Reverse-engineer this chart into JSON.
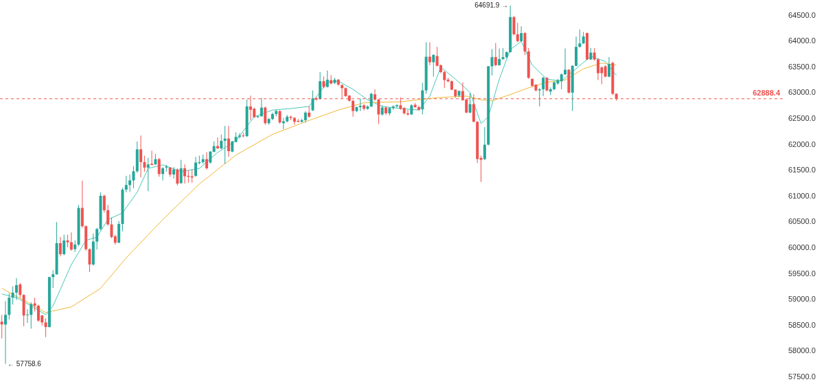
{
  "chart_data": {
    "type": "candlestick",
    "categories": [
      null,
      null,
      null,
      null,
      null,
      null,
      null,
      null,
      null,
      null,
      null,
      null,
      null,
      null,
      null,
      null,
      null,
      null,
      null,
      null,
      null,
      null,
      null,
      null,
      null,
      null,
      null,
      null,
      null,
      null,
      null,
      null,
      null,
      null,
      null,
      null,
      null,
      null,
      null,
      null,
      null,
      null,
      null,
      null,
      null,
      null,
      null,
      null,
      null,
      null,
      null,
      null,
      null,
      null,
      null,
      null,
      null,
      null,
      null,
      null,
      null,
      null,
      null,
      null,
      null,
      null,
      null,
      null,
      null,
      null,
      null,
      null,
      null,
      null,
      null,
      null,
      null,
      null,
      null,
      null,
      null,
      null,
      null,
      null,
      null,
      null,
      null,
      null,
      null,
      null,
      null,
      null,
      null,
      null,
      null,
      null,
      null,
      null,
      null,
      null,
      null,
      null,
      null,
      null,
      null,
      null,
      null,
      null,
      null,
      null,
      null,
      null,
      null,
      null,
      null,
      null,
      null,
      null,
      null,
      null,
      null,
      null,
      null,
      null,
      null,
      null,
      null,
      null,
      null,
      null,
      null,
      null,
      null,
      null,
      null,
      null,
      null,
      null,
      null,
      null,
      null,
      null,
      null,
      null,
      null,
      null,
      null,
      null,
      null,
      null,
      null,
      null,
      null,
      null,
      null,
      null,
      null,
      null,
      null,
      null,
      null,
      null,
      null,
      null,
      null,
      null,
      null,
      null,
      null,
      null,
      null,
      null,
      null,
      null,
      null,
      null,
      null,
      null,
      null,
      null,
      null,
      null,
      null,
      null,
      null,
      null,
      null,
      null,
      null,
      null,
      null,
      null,
      null,
      null,
      null,
      null,
      null,
      null,
      null,
      null,
      null,
      null,
      null,
      null,
      null,
      null,
      null,
      null,
      null,
      null,
      null,
      null,
      null,
      null
    ],
    "ohlc": [
      [
        58573,
        58706,
        58250,
        58520
      ],
      [
        58520,
        58972,
        57758.6,
        58706
      ],
      [
        58706,
        59127,
        58617,
        59039
      ],
      [
        59039,
        59260,
        58905,
        59136
      ],
      [
        59136,
        59416,
        58994,
        59282
      ],
      [
        59295,
        59327,
        59039,
        59092
      ],
      [
        59092,
        59105,
        58485,
        58693
      ],
      [
        58702,
        58817,
        58551,
        58715
      ],
      [
        58706,
        58950,
        58440,
        58914
      ],
      [
        58928,
        59039,
        58773,
        58884
      ],
      [
        58884,
        58905,
        58573,
        58595
      ],
      [
        58693,
        58706,
        58498,
        58560
      ],
      [
        58560,
        58640,
        58276,
        58471
      ],
      [
        58471,
        59446,
        58462,
        59437
      ],
      [
        59437,
        59571,
        59225,
        59491
      ],
      [
        59491,
        60502,
        59482,
        60094
      ],
      [
        60094,
        60213,
        59836,
        59881
      ],
      [
        59881,
        60258,
        59859,
        60146
      ],
      [
        60146,
        60258,
        60014,
        60111
      ],
      [
        60111,
        60302,
        59947,
        59970
      ],
      [
        59978,
        60146,
        59925,
        60067
      ],
      [
        60067,
        60833,
        60036,
        60776
      ],
      [
        60776,
        61303,
        60390,
        60422
      ],
      [
        60422,
        60439,
        59947,
        59978
      ],
      [
        59978,
        59991,
        59535,
        59681
      ],
      [
        59681,
        60280,
        59659,
        60125
      ],
      [
        60125,
        60390,
        59970,
        60368
      ],
      [
        60368,
        61077,
        60346,
        61011
      ],
      [
        61011,
        61033,
        60687,
        60732
      ],
      [
        60732,
        60833,
        60434,
        60457
      ],
      [
        60457,
        60589,
        60190,
        60213
      ],
      [
        60226,
        60258,
        60067,
        60103
      ],
      [
        60103,
        60523,
        60094,
        60466
      ],
      [
        60466,
        61166,
        60324,
        61130
      ],
      [
        61130,
        61397,
        61077,
        61219
      ],
      [
        61219,
        61423,
        61086,
        61308
      ],
      [
        61308,
        61588,
        61157,
        61485
      ],
      [
        61485,
        62061,
        61454,
        61910
      ],
      [
        61910,
        62177,
        61365,
        61663
      ],
      [
        61663,
        61787,
        61476,
        61556
      ],
      [
        61556,
        61743,
        61100,
        61618
      ],
      [
        61632,
        61884,
        61600,
        61609
      ],
      [
        61618,
        61823,
        61609,
        61720
      ],
      [
        61720,
        61743,
        61379,
        61432
      ],
      [
        61432,
        61565,
        61308,
        61543
      ],
      [
        61556,
        61609,
        61476,
        61574
      ],
      [
        61556,
        61565,
        61379,
        61422
      ],
      [
        61423,
        61565,
        61344,
        61520
      ],
      [
        61520,
        61543,
        61210,
        61246
      ],
      [
        61255,
        61707,
        61246,
        61543
      ],
      [
        61543,
        61618,
        61246,
        61388
      ],
      [
        61397,
        61499,
        61264,
        61379
      ],
      [
        61388,
        61520,
        61264,
        61365
      ],
      [
        61397,
        61765,
        61379,
        61654
      ],
      [
        61645,
        61787,
        61618,
        61663
      ],
      [
        61663,
        61809,
        61632,
        61720
      ],
      [
        61720,
        61853,
        61520,
        61543
      ],
      [
        61654,
        61875,
        61632,
        61866
      ],
      [
        61862,
        62062,
        61854,
        61973
      ],
      [
        61973,
        62142,
        61920,
        61928
      ],
      [
        61928,
        62195,
        61911,
        62075
      ],
      [
        62075,
        62363,
        61632,
        62119
      ],
      [
        62119,
        62363,
        61765,
        61875
      ],
      [
        61866,
        62075,
        61854,
        62062
      ],
      [
        62053,
        62240,
        62044,
        62151
      ],
      [
        62151,
        62222,
        62119,
        62177
      ],
      [
        62177,
        62231,
        62142,
        62164
      ],
      [
        62164,
        62873,
        62151,
        62740
      ],
      [
        62740,
        62948,
        62474,
        62674
      ],
      [
        62696,
        62718,
        62519,
        62532
      ],
      [
        62532,
        62562,
        62519,
        62550
      ],
      [
        62550,
        62904,
        62541,
        62718
      ],
      [
        62718,
        62740,
        62386,
        62416
      ],
      [
        62416,
        62519,
        62386,
        62496
      ],
      [
        62496,
        62621,
        62475,
        62594
      ],
      [
        62594,
        62674,
        62550,
        62651
      ],
      [
        62651,
        62665,
        62407,
        62430
      ],
      [
        62416,
        62519,
        62297,
        62452
      ],
      [
        62452,
        62576,
        62430,
        62541
      ],
      [
        62541,
        62562,
        62474,
        62519
      ],
      [
        62519,
        62532,
        62386,
        62443
      ],
      [
        62461,
        62496,
        62430,
        62443
      ],
      [
        62443,
        62505,
        62430,
        62474
      ],
      [
        62474,
        62651,
        62430,
        62621
      ],
      [
        62621,
        62740,
        62519,
        62541
      ],
      [
        62664,
        63050,
        62651,
        62895
      ],
      [
        62895,
        62918,
        62851,
        62873
      ],
      [
        62886,
        63405,
        62873,
        63228
      ],
      [
        63228,
        63317,
        63094,
        63117
      ],
      [
        63117,
        63436,
        63108,
        63258
      ],
      [
        63249,
        63347,
        63170,
        63183
      ],
      [
        63196,
        63294,
        63170,
        63258
      ],
      [
        63258,
        63272,
        63139,
        63162
      ],
      [
        63153,
        63170,
        62895,
        63094
      ],
      [
        63094,
        63108,
        62930,
        62939
      ],
      [
        62948,
        62961,
        62829,
        62851
      ],
      [
        62851,
        62859,
        62541,
        62651
      ],
      [
        62651,
        62740,
        62629,
        62726
      ],
      [
        62726,
        62895,
        62651,
        62753
      ],
      [
        62762,
        62784,
        62664,
        62696
      ],
      [
        62696,
        62762,
        62674,
        62740
      ],
      [
        62740,
        63006,
        62726,
        62984
      ],
      [
        62975,
        63073,
        62851,
        62873
      ],
      [
        62873,
        62886,
        62398,
        62585
      ],
      [
        62585,
        62762,
        62562,
        62718
      ],
      [
        62718,
        62740,
        62576,
        62607
      ],
      [
        62607,
        62726,
        62562,
        62709
      ],
      [
        62709,
        62762,
        62674,
        62740
      ],
      [
        62740,
        62784,
        62718,
        62762
      ],
      [
        62762,
        62918,
        62674,
        62696
      ],
      [
        62709,
        62726,
        62585,
        62607
      ],
      [
        62607,
        62674,
        62562,
        62585
      ],
      [
        62585,
        62784,
        62576,
        62762
      ],
      [
        62772,
        62807,
        62710,
        62727
      ],
      [
        62727,
        62754,
        62665,
        62674
      ],
      [
        62683,
        63197,
        62586,
        63051
      ],
      [
        63051,
        63982,
        62985,
        63703
      ],
      [
        63703,
        63982,
        63539,
        63596
      ],
      [
        63596,
        63747,
        63317,
        63738
      ],
      [
        63716,
        63893,
        63516,
        63525
      ],
      [
        63539,
        63552,
        63383,
        63406
      ],
      [
        63406,
        63428,
        63095,
        63250
      ],
      [
        63259,
        63295,
        63206,
        63228
      ],
      [
        63228,
        63242,
        63051,
        63064
      ],
      [
        63064,
        63073,
        62905,
        62940
      ],
      [
        62949,
        63051,
        62918,
        63038
      ],
      [
        63038,
        63206,
        62851,
        62860
      ],
      [
        62874,
        62896,
        62608,
        62621
      ],
      [
        62621,
        62993,
        62608,
        62785
      ],
      [
        62785,
        62976,
        62430,
        62444
      ],
      [
        62444,
        62452,
        61646,
        61721
      ],
      [
        61743,
        61788,
        61278,
        61708
      ],
      [
        61721,
        62342,
        61699,
        62000
      ],
      [
        62000,
        63525,
        61987,
        63517
      ],
      [
        63517,
        63849,
        63339,
        63694
      ],
      [
        63694,
        63969,
        63516,
        63539
      ],
      [
        63539,
        63862,
        63525,
        63658
      ],
      [
        63658,
        63871,
        63641,
        63694
      ],
      [
        63694,
        63805,
        63672,
        63791
      ],
      [
        63791,
        64691.9,
        63782,
        64470
      ],
      [
        64470,
        64492,
        64115,
        64137
      ],
      [
        64137,
        64359,
        63982,
        64004
      ],
      [
        64004,
        64292,
        63995,
        64159
      ],
      [
        64159,
        64181,
        63738,
        63805
      ],
      [
        63805,
        63871,
        63273,
        63295
      ],
      [
        63273,
        63286,
        63117,
        63140
      ],
      [
        63162,
        63171,
        63029,
        63051
      ],
      [
        63051,
        63095,
        62741,
        63073
      ],
      [
        63073,
        63317,
        62940,
        63295
      ],
      [
        63295,
        63304,
        63029,
        63051
      ],
      [
        63029,
        63109,
        62962,
        63073
      ],
      [
        63073,
        63228,
        63051,
        63206
      ],
      [
        63184,
        63273,
        63162,
        63250
      ],
      [
        63228,
        63383,
        63073,
        63361
      ],
      [
        63361,
        63862,
        63348,
        63450
      ],
      [
        63450,
        63463,
        62993,
        63007
      ],
      [
        63007,
        63539,
        62652,
        63525
      ],
      [
        63525,
        64093,
        63516,
        63893
      ],
      [
        63893,
        64226,
        63880,
        63960
      ],
      [
        63960,
        64181,
        63951,
        64093
      ],
      [
        64159,
        64172,
        63641,
        63649
      ],
      [
        63649,
        63871,
        63641,
        63782
      ],
      [
        63782,
        63871,
        63627,
        63649
      ],
      [
        63649,
        63672,
        63250,
        63383
      ],
      [
        63494,
        63516,
        63171,
        63383
      ],
      [
        63516,
        63539,
        63304,
        63317
      ],
      [
        63317,
        63694,
        63304,
        63561
      ],
      [
        63583,
        63605,
        62962,
        62985
      ],
      [
        62985,
        62993,
        62852,
        62888.4
      ],
      null,
      null,
      null,
      null,
      null,
      null,
      null,
      null,
      null,
      null,
      null,
      null,
      null,
      null,
      null,
      null,
      null,
      null,
      null,
      null,
      null,
      null,
      null,
      null,
      null,
      null,
      null,
      null,
      null,
      null,
      null,
      null,
      null,
      null,
      null,
      null,
      null,
      null,
      null,
      null,
      null,
      null,
      null,
      null,
      null
    ],
    "colors": [
      "#ef5350",
      "#26a69a",
      "#26a69a",
      "#26a69a",
      "#26a69a",
      "#ef5350",
      "#ef5350",
      "#26a69a",
      "#26a69a",
      "#ef5350",
      "#ef5350",
      "#ef5350",
      "#ef5350",
      "#26a69a",
      "#26a69a",
      "#26a69a",
      "#ef5350",
      "#26a69a",
      "#ef5350",
      "#ef5350",
      "#26a69a",
      "#26a69a",
      "#ef5350",
      "#ef5350",
      "#ef5350",
      "#26a69a",
      "#26a69a",
      "#26a69a",
      "#ef5350",
      "#ef5350",
      "#ef5350",
      "#ef5350",
      "#26a69a",
      "#26a69a",
      "#26a69a",
      "#26a69a",
      "#26a69a",
      "#26a69a",
      "#ef5350",
      "#ef5350",
      "#26a69a",
      "#ef5350",
      "#26a69a",
      "#ef5350",
      "#26a69a",
      "#26a69a",
      "#ef5350",
      "#26a69a",
      "#ef5350",
      "#26a69a",
      "#ef5350",
      "#ef5350",
      "#ef5350",
      "#26a69a",
      "#26a69a",
      "#26a69a",
      "#ef5350",
      "#26a69a",
      "#26a69a",
      "#ef5350",
      "#26a69a",
      "#26a69a",
      "#ef5350",
      "#26a69a",
      "#26a69a",
      "#26a69a",
      "#ef5350",
      "#26a69a",
      "#ef5350",
      "#ef5350",
      "#26a69a",
      "#26a69a",
      "#ef5350",
      "#26a69a",
      "#26a69a",
      "#26a69a",
      "#ef5350",
      "#26a69a",
      "#26a69a",
      "#ef5350",
      "#ef5350",
      "#ef5350",
      "#26a69a",
      "#26a69a",
      "#ef5350",
      "#26a69a",
      "#ef5350",
      "#26a69a",
      "#ef5350",
      "#26a69a",
      "#ef5350",
      "#26a69a",
      "#ef5350",
      "#ef5350",
      "#ef5350",
      "#ef5350",
      "#ef5350",
      "#26a69a",
      "#26a69a",
      "#ef5350",
      "#26a69a",
      "#26a69a",
      "#ef5350",
      "#ef5350",
      "#26a69a",
      "#ef5350",
      "#26a69a",
      "#26a69a",
      "#26a69a",
      "#ef5350",
      "#ef5350",
      "#ef5350",
      "#26a69a",
      "#ef5350",
      "#ef5350",
      "#26a69a",
      "#26a69a",
      "#ef5350",
      "#26a69a",
      "#ef5350",
      "#ef5350",
      "#ef5350",
      "#ef5350",
      "#ef5350",
      "#ef5350",
      "#26a69a",
      "#ef5350",
      "#ef5350",
      "#26a69a",
      "#ef5350",
      "#ef5350",
      "#ef5350",
      "#26a69a",
      "#26a69a",
      "#26a69a",
      "#ef5350",
      "#26a69a",
      "#26a69a",
      "#26a69a",
      "#26a69a",
      "#ef5350",
      "#ef5350",
      "#26a69a",
      "#ef5350",
      "#ef5350",
      "#ef5350",
      "#ef5350",
      "#26a69a",
      "#26a69a",
      "#ef5350",
      "#26a69a",
      "#26a69a",
      "#26a69a",
      "#26a69a",
      "#26a69a",
      "#ef5350",
      "#26a69a",
      "#26a69a",
      "#26a69a",
      "#26a69a",
      "#ef5350",
      "#26a69a",
      "#ef5350",
      "#ef5350",
      "#ef5350",
      "#ef5350",
      "#26a69a",
      "#ef5350",
      "#ef5350",
      null,
      null,
      null,
      null,
      null,
      null,
      null,
      null,
      null,
      null,
      null,
      null,
      null,
      null,
      null,
      null,
      null,
      null,
      null,
      null,
      null,
      null,
      null,
      null,
      null,
      null,
      null,
      null,
      null,
      null,
      null,
      null,
      null,
      null,
      null,
      null,
      null,
      null,
      null,
      null,
      null,
      null,
      null,
      null,
      null
    ],
    "series": [
      {
        "type": "line",
        "color": "#45c7b6",
        "values": [
          59110,
          null,
          null,
          null,
          59040,
          null,
          null,
          null,
          58880,
          null,
          null,
          null,
          58710,
          null,
          58880,
          null,
          null,
          null,
          null,
          59680,
          null,
          null,
          null,
          60150,
          null,
          null,
          60210,
          null,
          null,
          60550,
          null,
          null,
          null,
          60680,
          null,
          null,
          null,
          61080,
          null,
          null,
          61540,
          null,
          null,
          null,
          61610,
          null,
          null,
          null,
          null,
          61480,
          null,
          null,
          null,
          null,
          61540,
          null,
          null,
          null,
          null,
          61850,
          null,
          null,
          null,
          null,
          62080,
          null,
          null,
          null,
          null,
          62540,
          null,
          null,
          null,
          null,
          62670,
          null,
          null,
          null,
          null,
          62700,
          null,
          null,
          null,
          null,
          62740,
          null,
          null,
          null,
          null,
          63210,
          null,
          null,
          63230,
          null,
          null,
          null,
          63070,
          null,
          null,
          null,
          62870,
          null,
          null,
          null,
          62740,
          null,
          null,
          null,
          null,
          62700,
          null,
          null,
          null,
          null,
          62670,
          null,
          null,
          62940,
          null,
          null,
          63500,
          null,
          null,
          null,
          63270,
          null,
          null,
          null,
          63010,
          null,
          null,
          62410,
          null,
          62540,
          null,
          null,
          63270,
          null,
          null,
          63840,
          null,
          null,
          64000,
          null,
          null,
          63540,
          null,
          null,
          null,
          63270,
          null,
          null,
          null,
          63230,
          null,
          null,
          null,
          63470,
          null,
          null,
          null,
          63710,
          null,
          null,
          null,
          63610,
          null,
          null,
          63340,
          null,
          null,
          null,
          null,
          null,
          null,
          null,
          null,
          null,
          null,
          null,
          null,
          null,
          null,
          null,
          null,
          null,
          null,
          null,
          null,
          null,
          null,
          null,
          null,
          null,
          null,
          null,
          null,
          null,
          null,
          null,
          null,
          null,
          null,
          null,
          null,
          null,
          null,
          null,
          null,
          null,
          null,
          null,
          null,
          null
        ]
      },
      {
        "type": "line",
        "color": "#f2b632",
        "values": [
          59220,
          null,
          null,
          null,
          null,
          null,
          null,
          58950,
          null,
          null,
          null,
          null,
          58750,
          null,
          null,
          null,
          null,
          null,
          null,
          58860,
          null,
          null,
          null,
          null,
          null,
          null,
          null,
          59220,
          null,
          null,
          null,
          null,
          null,
          null,
          59810,
          null,
          null,
          null,
          null,
          null,
          null,
          null,
          null,
          null,
          60550,
          null,
          null,
          null,
          null,
          null,
          null,
          null,
          null,
          null,
          61240,
          null,
          null,
          null,
          null,
          null,
          null,
          null,
          null,
          null,
          61800,
          null,
          null,
          null,
          null,
          null,
          null,
          null,
          null,
          null,
          62200,
          null,
          null,
          null,
          null,
          null,
          null,
          null,
          null,
          null,
          62470,
          null,
          null,
          null,
          null,
          null,
          null,
          null,
          62670,
          null,
          null,
          null,
          null,
          null,
          null,
          62810,
          null,
          null,
          null,
          null,
          null,
          null,
          null,
          null,
          null,
          62830,
          null,
          null,
          null,
          null,
          null,
          null,
          null,
          null,
          null,
          62910,
          null,
          null,
          null,
          null,
          null,
          null,
          null,
          62940,
          null,
          null,
          null,
          62870,
          null,
          null,
          62850,
          null,
          null,
          null,
          null,
          62970,
          null,
          null,
          null,
          null,
          63100,
          null,
          null,
          null,
          null,
          63210,
          null,
          null,
          null,
          null,
          63250,
          null,
          null,
          null,
          null,
          63470,
          null,
          null,
          null,
          null,
          63580,
          null,
          null,
          null,
          63540,
          null,
          null,
          null,
          null,
          null,
          null,
          null,
          null,
          null,
          null,
          null,
          null,
          null,
          null,
          null,
          null,
          null,
          null,
          null,
          null,
          null,
          null,
          null,
          null,
          null,
          null,
          null,
          null,
          null,
          null,
          null,
          null,
          null,
          null,
          null,
          null,
          null,
          null,
          null,
          null,
          null,
          null,
          null,
          null,
          null
        ]
      }
    ],
    "ylim": [
      57500,
      64800
    ],
    "yticks": [
      {
        "value": 57500,
        "label": "57500.0"
      },
      {
        "value": 58000,
        "label": "58000.0"
      },
      {
        "value": 58500,
        "label": "58500.0"
      },
      {
        "value": 59000,
        "label": "59000.0"
      },
      {
        "value": 59500,
        "label": "59500.0"
      },
      {
        "value": 60000,
        "label": "60000.0"
      },
      {
        "value": 60500,
        "label": "60500.0"
      },
      {
        "value": 61000,
        "label": "61000.0"
      },
      {
        "value": 61500,
        "label": "61500.0"
      },
      {
        "value": 62000,
        "label": "62000.0"
      },
      {
        "value": 62500,
        "label": "62500.0"
      },
      {
        "value": 63000,
        "label": "63000.0"
      },
      {
        "value": 63500,
        "label": "63500.0"
      },
      {
        "value": 64000,
        "label": "64000.0"
      },
      {
        "value": 64500,
        "label": "64500.0"
      }
    ],
    "ref_lines": [
      {
        "axis": "y",
        "value": 62888.4,
        "label": "62888.4",
        "color": "#ef5350",
        "line_style": "dashed"
      }
    ],
    "annotations": [
      "64691.9 →",
      "← 57758.6"
    ],
    "grid": false,
    "tick_labels": "y"
  }
}
